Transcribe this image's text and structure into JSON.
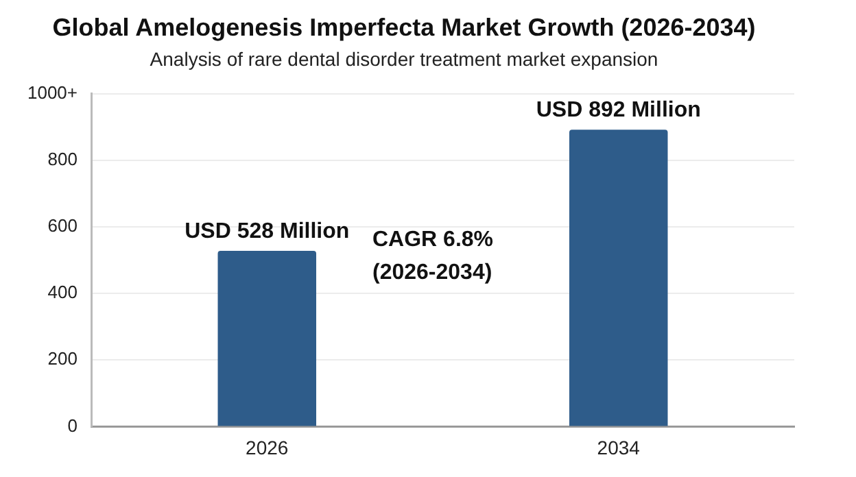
{
  "chart_data": {
    "type": "bar",
    "title": "Global Amelogenesis Imperfecta Market Growth (2026-2034)",
    "subtitle": "Analysis of rare dental disorder treatment market expansion",
    "categories": [
      "2026",
      "2034"
    ],
    "values": [
      528,
      892
    ],
    "color": "#2e5c8a",
    "value_labels": [
      "USD 528 Million",
      "USD 892 Million"
    ],
    "annotations": [
      "CAGR 6.8%\n(2026-2034)"
    ],
    "ylim": [
      0,
      1000
    ],
    "yticks": [
      0,
      200,
      400,
      600,
      800,
      {
        "value": 1000,
        "label": "1000+"
      }
    ],
    "grid": "y",
    "legend": false
  }
}
